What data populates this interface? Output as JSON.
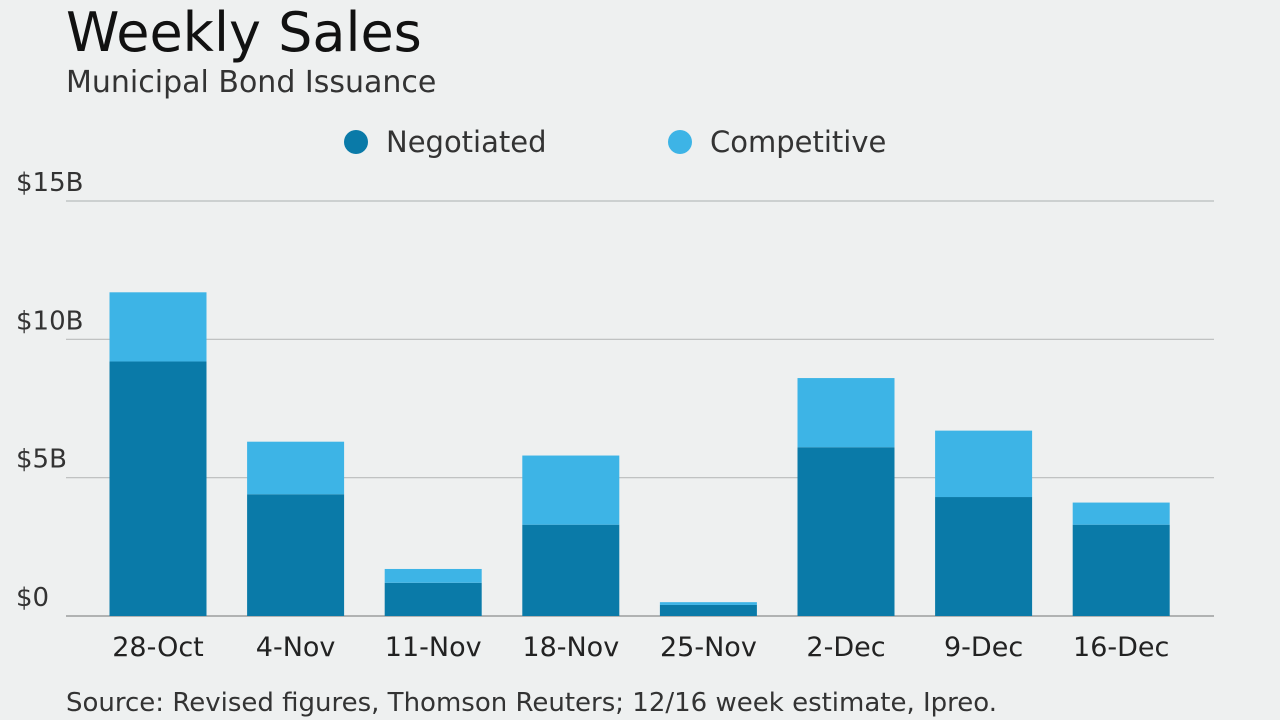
{
  "chart_data": {
    "type": "bar",
    "stacked": true,
    "title": "Weekly Sales",
    "subtitle": "Municipal Bond Issuance",
    "categories": [
      "28-Oct",
      "4-Nov",
      "11-Nov",
      "18-Nov",
      "25-Nov",
      "2-Dec",
      "9-Dec",
      "16-Dec"
    ],
    "series": [
      {
        "name": "Negotiated",
        "color": "#0a7aa8",
        "values": [
          9.2,
          4.4,
          1.2,
          3.3,
          0.4,
          6.1,
          4.3,
          3.3
        ]
      },
      {
        "name": "Competitive",
        "color": "#3db4e6",
        "values": [
          2.5,
          1.9,
          0.5,
          2.5,
          0.1,
          2.5,
          2.4,
          0.8
        ]
      }
    ],
    "y_ticks": [
      "$0",
      "$5B",
      "$10B",
      "$15B"
    ],
    "y_tick_values": [
      0,
      5,
      10,
      15
    ],
    "ylim": [
      0,
      15
    ],
    "grid": true,
    "legend_position": "top",
    "source": "Source: Revised figures, Thomson Reuters; 12/16 week estimate, Ipreo."
  }
}
